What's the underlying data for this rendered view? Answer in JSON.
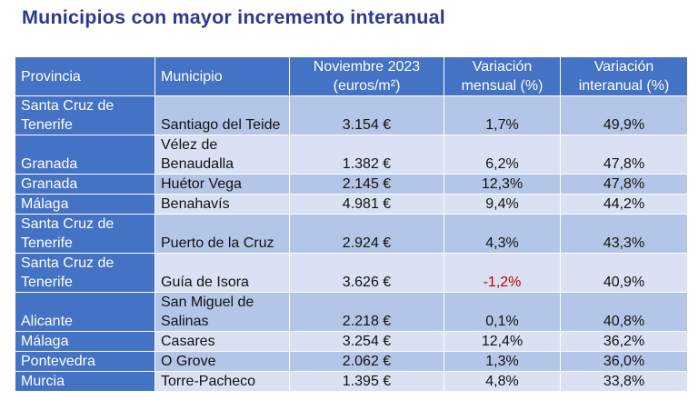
{
  "title": "Municipios con mayor incremento interanual",
  "headers": {
    "provincia": "Provincia",
    "municipio": "Municipio",
    "precio": "Noviembre 2023 (euros/m²)",
    "mensual": "Variación mensual (%)",
    "interanual": "Variación interanual (%)"
  },
  "rows": [
    {
      "provincia": "Santa Cruz de Tenerife",
      "municipio": "Santiago del Teide",
      "precio": "3.154 €",
      "mensual": "1,7%",
      "interanual": "49,9%"
    },
    {
      "provincia": "Granada",
      "municipio": "Vélez de Benaudalla",
      "precio": "1.382 €",
      "mensual": "6,2%",
      "interanual": "47,8%"
    },
    {
      "provincia": "Granada",
      "municipio": "Huétor Vega",
      "precio": "2.145 €",
      "mensual": "12,3%",
      "interanual": "47,8%"
    },
    {
      "provincia": "Málaga",
      "municipio": "Benahavís",
      "precio": "4.981 €",
      "mensual": "9,4%",
      "interanual": "44,2%"
    },
    {
      "provincia": "Santa Cruz de Tenerife",
      "municipio": "Puerto de la Cruz",
      "precio": "2.924 €",
      "mensual": "4,3%",
      "interanual": "43,3%"
    },
    {
      "provincia": "Santa Cruz de Tenerife",
      "municipio": "Guía de Isora",
      "precio": "3.626 €",
      "mensual": "-1,2%",
      "interanual": "40,9%"
    },
    {
      "provincia": "Alicante",
      "municipio": "San Miguel de Salinas",
      "precio": "2.218 €",
      "mensual": "0,1%",
      "interanual": "40,8%"
    },
    {
      "provincia": "Málaga",
      "municipio": "Casares",
      "precio": "3.254 €",
      "mensual": "12,4%",
      "interanual": "36,2%"
    },
    {
      "provincia": "Pontevedra",
      "municipio": "O Grove",
      "precio": "2.062 €",
      "mensual": "1,3%",
      "interanual": "36,0%"
    },
    {
      "provincia": "Murcia",
      "municipio": "Torre-Pacheco",
      "precio": "1.395 €",
      "mensual": "4,8%",
      "interanual": "33,8%"
    }
  ],
  "colors": {
    "title": "#2b3a8f",
    "header_bg": "#4472c4",
    "row_dark": "#b4c6e7",
    "row_light": "#d9e1f2",
    "negative": "#c00000"
  }
}
